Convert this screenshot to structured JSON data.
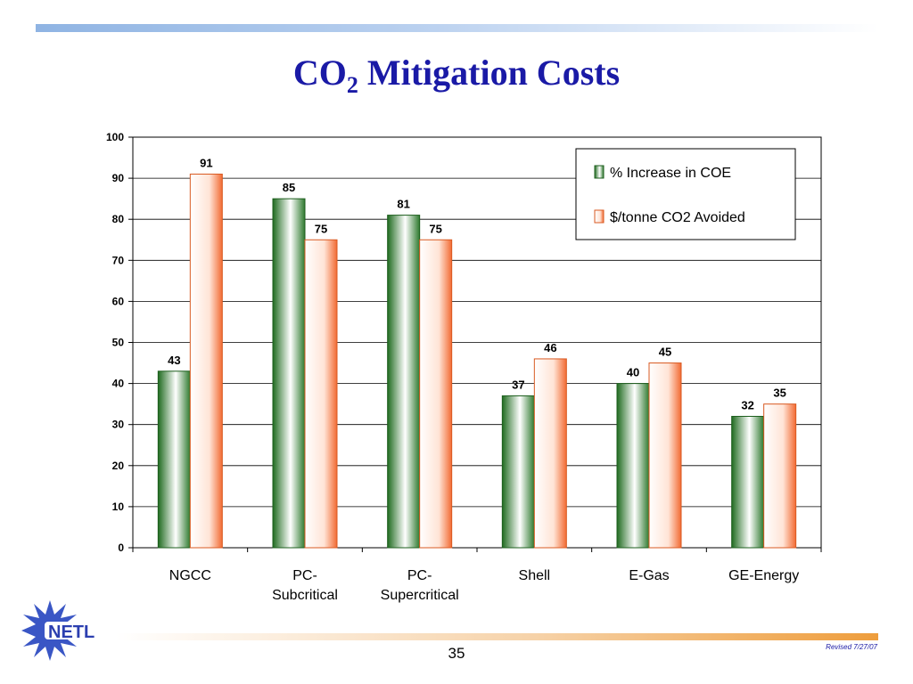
{
  "slide": {
    "title_main": "CO",
    "title_sub": "2",
    "title_rest": " Mitigation Costs",
    "page_number": "35",
    "revised": "Revised 7/27/07",
    "logo_text": "NETL"
  },
  "colors": {
    "title": "#1a1aa6",
    "series_green": "#2f7a2f",
    "series_orange": "#f06a3a"
  },
  "chart_data": {
    "type": "bar",
    "title": "",
    "xlabel": "",
    "ylabel": "",
    "ylim": [
      0,
      100
    ],
    "y_ticks": [
      0,
      10,
      20,
      30,
      40,
      50,
      60,
      70,
      80,
      90,
      100
    ],
    "grid": true,
    "legend_position": "top-right",
    "categories": [
      [
        "NGCC"
      ],
      [
        "PC-",
        "Subcritical"
      ],
      [
        "PC-",
        "Supercritical"
      ],
      [
        "Shell"
      ],
      [
        "E-Gas"
      ],
      [
        "GE-Energy"
      ]
    ],
    "series": [
      {
        "name": "% Increase in COE",
        "values": [
          43,
          85,
          81,
          37,
          40,
          32
        ]
      },
      {
        "name": "$/tonne CO2 Avoided",
        "values": [
          91,
          75,
          75,
          46,
          45,
          35
        ]
      }
    ]
  }
}
